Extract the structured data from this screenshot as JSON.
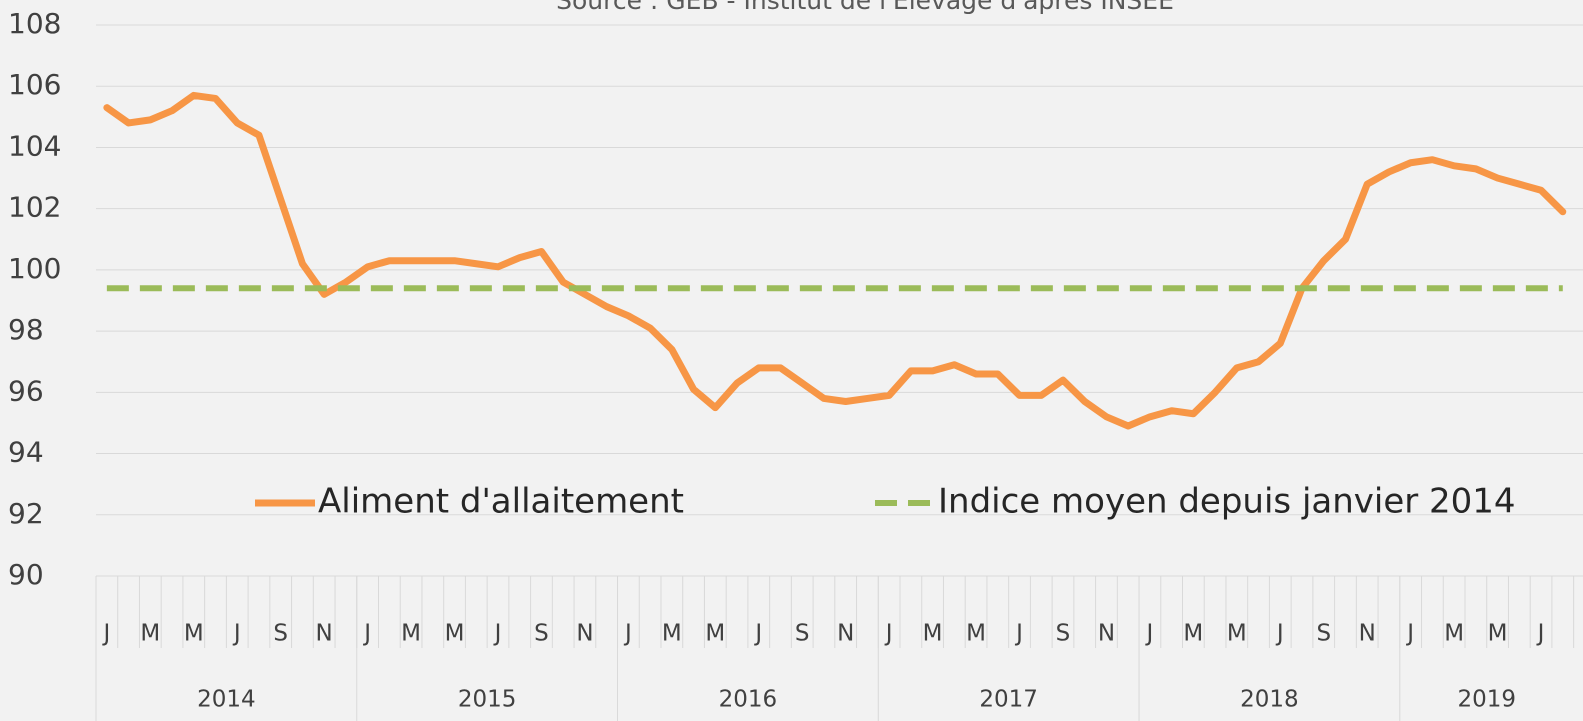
{
  "chart_data": {
    "type": "line",
    "subtitle": "Source : GEB - Institut de l'Elevage d'après INSEE",
    "categories": [
      "J",
      null,
      "M",
      null,
      "M",
      null,
      "J",
      null,
      "S",
      null,
      "N",
      null,
      "J",
      null,
      "M",
      null,
      "M",
      null,
      "J",
      null,
      "S",
      null,
      "N",
      null,
      "J",
      null,
      "M",
      null,
      "M",
      null,
      "J",
      null,
      "S",
      null,
      "N",
      null,
      "J",
      null,
      "M",
      null,
      "M",
      null,
      "J",
      null,
      "S",
      null,
      "N",
      null,
      "J",
      null,
      "M",
      null,
      "M",
      null,
      "J",
      null,
      "S",
      null,
      "N",
      null,
      "J",
      null,
      "M",
      null,
      "M",
      null,
      "J",
      null
    ],
    "years": [
      "2014",
      "2015",
      "2016",
      "2017",
      "2018",
      "2019"
    ],
    "series": [
      {
        "name": "Aliment d'allaitement",
        "color": "#f79646",
        "dashed": false,
        "values": [
          105.3,
          104.8,
          104.9,
          105.2,
          105.7,
          105.6,
          104.8,
          104.4,
          102.3,
          100.2,
          99.2,
          99.6,
          100.1,
          100.3,
          100.3,
          100.3,
          100.3,
          100.2,
          100.1,
          100.4,
          100.6,
          99.6,
          99.2,
          98.8,
          98.5,
          98.1,
          97.4,
          96.1,
          95.5,
          96.3,
          96.8,
          96.8,
          96.3,
          95.8,
          95.7,
          95.8,
          95.9,
          96.7,
          96.7,
          96.9,
          96.6,
          96.6,
          95.9,
          95.9,
          96.4,
          95.7,
          95.2,
          94.9,
          95.2,
          95.4,
          95.3,
          96.0,
          96.8,
          97.0,
          97.6,
          99.4,
          100.3,
          101.0,
          102.8,
          103.2,
          103.5,
          103.6,
          103.4,
          103.3,
          103.0,
          102.8,
          102.6,
          101.9
        ]
      },
      {
        "name": "Indice moyen depuis janvier 2014",
        "color": "#9bbb59",
        "dashed": true,
        "values": [
          99.4,
          99.4,
          99.4,
          99.4,
          99.4,
          99.4,
          99.4,
          99.4,
          99.4,
          99.4,
          99.4,
          99.4,
          99.4,
          99.4,
          99.4,
          99.4,
          99.4,
          99.4,
          99.4,
          99.4,
          99.4,
          99.4,
          99.4,
          99.4,
          99.4,
          99.4,
          99.4,
          99.4,
          99.4,
          99.4,
          99.4,
          99.4,
          99.4,
          99.4,
          99.4,
          99.4,
          99.4,
          99.4,
          99.4,
          99.4,
          99.4,
          99.4,
          99.4,
          99.4,
          99.4,
          99.4,
          99.4,
          99.4,
          99.4,
          99.4,
          99.4,
          99.4,
          99.4,
          99.4,
          99.4,
          99.4,
          99.4,
          99.4,
          99.4,
          99.4,
          99.4,
          99.4,
          99.4,
          99.4,
          99.4,
          99.4,
          99.4,
          99.4
        ]
      }
    ],
    "ylim": [
      90,
      108
    ],
    "yticks": [
      90,
      92,
      94,
      96,
      98,
      100,
      102,
      104,
      106,
      108
    ],
    "grid": true,
    "legend": "bottom"
  }
}
